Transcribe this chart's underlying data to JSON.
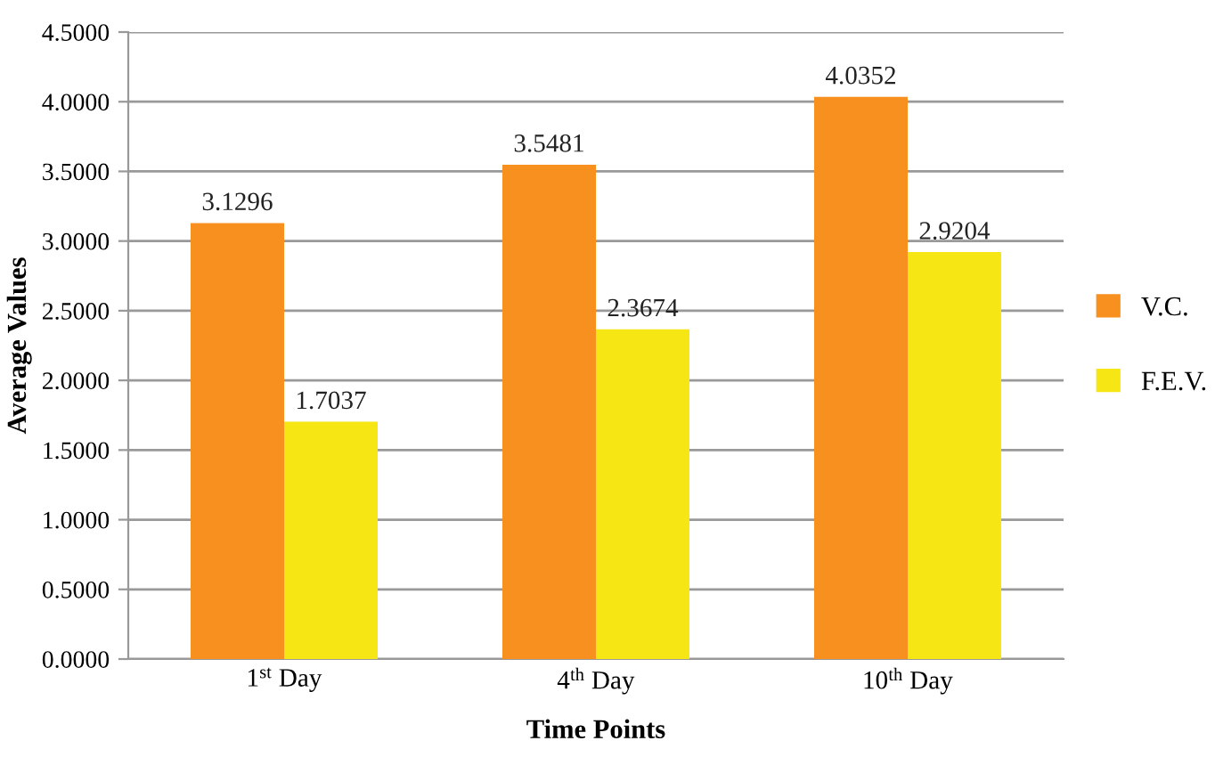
{
  "chart_data": {
    "type": "bar",
    "xlabel": "Time Points",
    "ylabel": "Average Values",
    "categories": [
      "1$^{st}$ Day",
      "4$^{th}$ Day",
      "10$^{th}$ Day"
    ],
    "series": [
      {
        "name": "V.C.",
        "color": "#f7901e",
        "values": [
          3.1296,
          3.5481,
          4.0352
        ]
      },
      {
        "name": "F.E.V.",
        "color": "#f5e614",
        "values": [
          1.7037,
          2.3674,
          2.9204
        ]
      }
    ],
    "ylim": [
      0,
      4.5
    ],
    "yticks": [
      {
        "value": 0,
        "label": "0.0000"
      },
      {
        "value": 0.5,
        "label": "0.5000"
      },
      {
        "value": 1,
        "label": "1.0000"
      },
      {
        "value": 1.5,
        "label": "1.5000"
      },
      {
        "value": 2,
        "label": "2.0000"
      },
      {
        "value": 2.5,
        "label": "2.5000"
      },
      {
        "value": 3,
        "label": "3.0000"
      },
      {
        "value": 3.5,
        "label": "3.5000"
      },
      {
        "value": 4,
        "label": "4.0000"
      },
      {
        "value": 4.5,
        "label": "4.5000"
      }
    ],
    "grid": "y",
    "legend": "right",
    "data_labels": true
  }
}
